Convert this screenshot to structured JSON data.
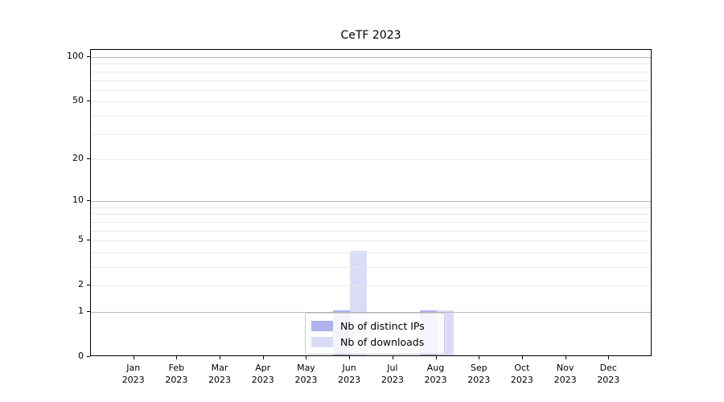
{
  "chart_data": {
    "type": "bar",
    "title": "CeTF 2023",
    "categories": [
      {
        "month": "Jan",
        "year": "2023"
      },
      {
        "month": "Feb",
        "year": "2023"
      },
      {
        "month": "Mar",
        "year": "2023"
      },
      {
        "month": "Apr",
        "year": "2023"
      },
      {
        "month": "May",
        "year": "2023"
      },
      {
        "month": "Jun",
        "year": "2023"
      },
      {
        "month": "Jul",
        "year": "2023"
      },
      {
        "month": "Aug",
        "year": "2023"
      },
      {
        "month": "Sep",
        "year": "2023"
      },
      {
        "month": "Oct",
        "year": "2023"
      },
      {
        "month": "Nov",
        "year": "2023"
      },
      {
        "month": "Dec",
        "year": "2023"
      }
    ],
    "series": [
      {
        "name": "Nb of distinct IPs",
        "color": "#aeb2ec",
        "values": [
          0,
          0,
          0,
          0,
          0,
          1,
          0,
          1,
          0,
          0,
          0,
          0
        ]
      },
      {
        "name": "Nb of downloads",
        "color": "#dadcf7",
        "values": [
          0,
          0,
          0,
          0,
          0,
          4,
          0,
          1,
          0,
          0,
          0,
          0
        ]
      }
    ],
    "yscale": "log1p",
    "ylim": [
      0,
      112
    ],
    "yticks_labeled": [
      0,
      1,
      2,
      5,
      10,
      20,
      50,
      100
    ],
    "gridlines_major": [
      1,
      10,
      100
    ],
    "gridlines_minor": [
      2,
      3,
      4,
      5,
      6,
      7,
      8,
      9,
      20,
      30,
      40,
      50,
      60,
      70,
      80,
      90
    ],
    "legend_position": "lower center",
    "colors": {
      "major_grid": "#b9b9b9",
      "minor_grid": "#e9e9e9",
      "spine": "#000000",
      "text": "#000000"
    }
  }
}
